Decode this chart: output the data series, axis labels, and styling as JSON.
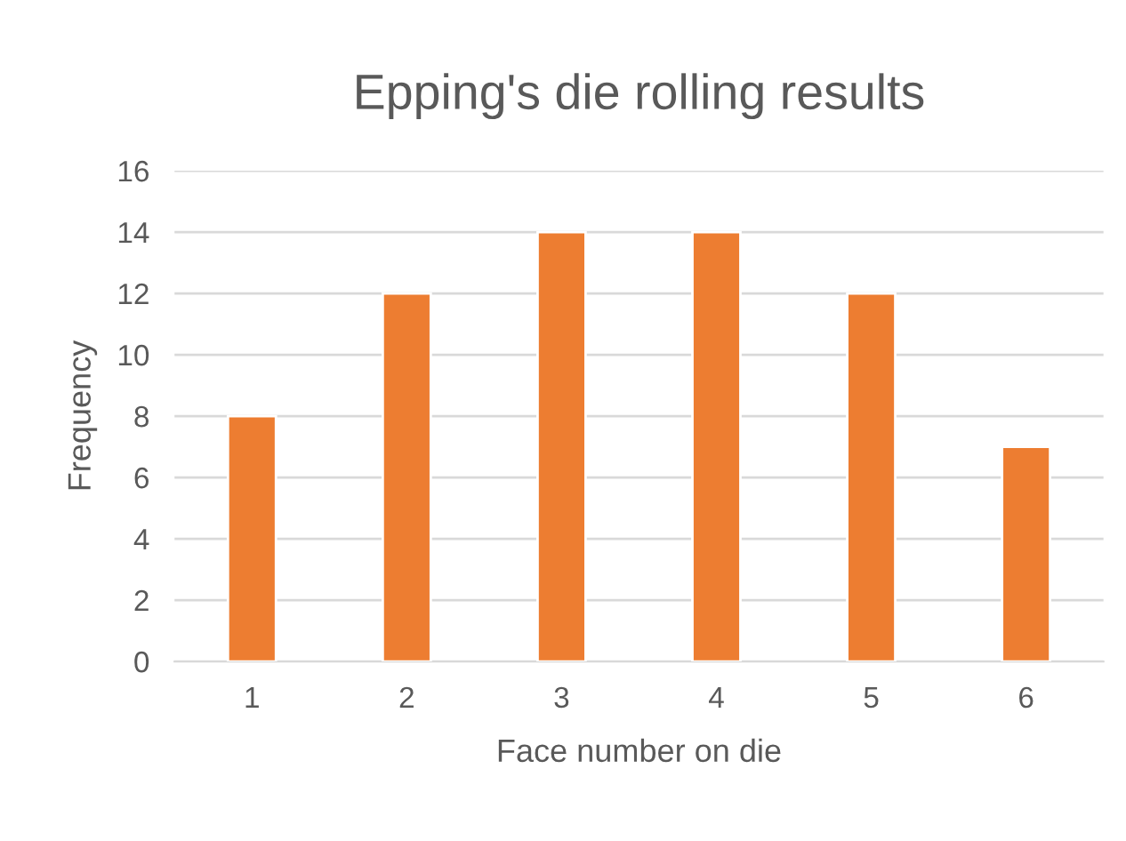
{
  "chart_data": {
    "type": "bar",
    "title": "Epping's die rolling results",
    "xlabel": "Face number on die",
    "ylabel": "Frequency",
    "categories": [
      "1",
      "2",
      "3",
      "4",
      "5",
      "6"
    ],
    "values": [
      8,
      12,
      14,
      14,
      12,
      7
    ],
    "color": "#ed7d31",
    "ylim": [
      0,
      16
    ],
    "yticks": [
      0,
      2,
      4,
      6,
      8,
      10,
      12,
      14,
      16
    ],
    "grid": "y",
    "legend": false
  }
}
